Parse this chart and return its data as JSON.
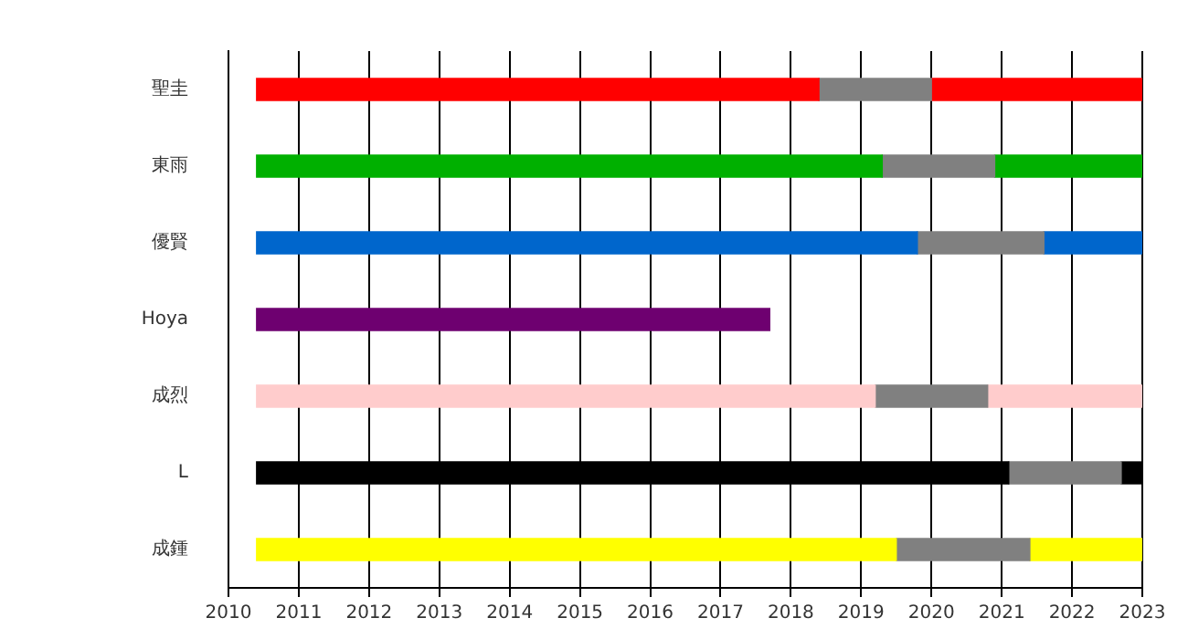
{
  "chart_data": {
    "type": "bar",
    "orientation": "horizontal",
    "categories": [
      "聖圭",
      "東雨",
      "優賢",
      "Hoya",
      "成烈",
      "L",
      "成鍾"
    ],
    "series": [
      {
        "colors": [
          "#ff0000",
          "#00b000",
          "#0066cc",
          "#6e0070",
          "#ffcccc",
          "#000000",
          "#ffff00"
        ],
        "base": [
          2010.4,
          2010.4,
          2010.4,
          2010.4,
          2010.4,
          2010.4,
          2010.4
        ],
        "values": [
          8.0,
          8.9,
          9.4,
          7.3,
          8.8,
          10.7,
          9.1
        ]
      },
      {
        "color": "#808080",
        "base": [
          2018.4,
          2019.3,
          2019.8,
          null,
          2019.2,
          2021.1,
          2019.5
        ],
        "values": [
          1.6,
          1.6,
          1.8,
          null,
          1.6,
          1.6,
          1.9
        ]
      },
      {
        "colors": [
          "#ff0000",
          "#00b000",
          "#0066cc",
          "#6e0070",
          "#ffcccc",
          "#000000",
          "#ffff00"
        ],
        "base": [
          2020.0,
          2020.9,
          2021.6,
          null,
          2020.8,
          2022.7,
          2021.4
        ],
        "values": [
          3.0,
          2.1,
          1.4,
          null,
          2.2,
          0.3,
          1.6
        ]
      }
    ],
    "xlim": [
      2010,
      2023
    ],
    "xticks": [
      2010,
      2011,
      2012,
      2013,
      2014,
      2015,
      2016,
      2017,
      2018,
      2019,
      2020,
      2021,
      2022,
      2023
    ],
    "grid": "x",
    "legend": false
  }
}
